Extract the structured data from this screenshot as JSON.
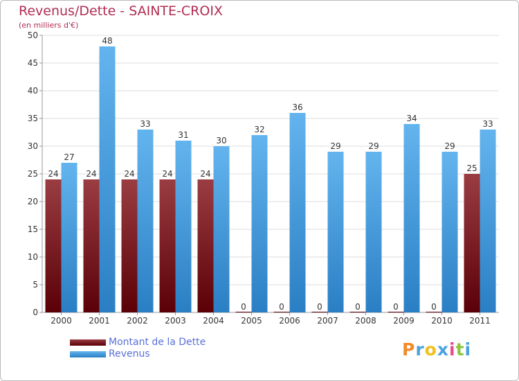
{
  "title": "Revenus/Dette - SAINTE-CROIX",
  "subtitle": "(en milliers d'€)",
  "colors": {
    "debt_dark": "#5a0006",
    "debt_light": "#9a3d43",
    "revenue_dark": "#2a7fc4",
    "revenue_light": "#63b4ee",
    "title": "#b02c52",
    "legend_text": "#5a6fd6",
    "axis_text": "#333333",
    "grid": "#dddddd"
  },
  "legend": {
    "debt_label": "Montant de la Dette",
    "revenue_label": "Revenus"
  },
  "logo": {
    "letters": [
      "P",
      "r",
      "o",
      "x",
      "i",
      "t",
      "i"
    ],
    "colors": [
      "#f08a2a",
      "#4aa3df",
      "#f0c020",
      "#4aa3df",
      "#e84a8a",
      "#8cc63f",
      "#4aa3df"
    ]
  },
  "chart_data": {
    "type": "bar",
    "title": "Revenus/Dette - SAINTE-CROIX",
    "ylabel": "(en milliers d'€)",
    "xlabel": "",
    "ylim": [
      0,
      50
    ],
    "yticks": [
      0,
      5,
      10,
      15,
      20,
      25,
      30,
      35,
      40,
      45,
      50
    ],
    "grid": true,
    "legend_position": "bottom-left",
    "categories": [
      "2000",
      "2001",
      "2002",
      "2003",
      "2004",
      "2005",
      "2006",
      "2007",
      "2008",
      "2009",
      "2010",
      "2011"
    ],
    "series": [
      {
        "name": "Montant de la Dette",
        "values": [
          24,
          24,
          24,
          24,
          24,
          0,
          0,
          0,
          0,
          0,
          0,
          25
        ]
      },
      {
        "name": "Revenus",
        "values": [
          27,
          48,
          33,
          31,
          30,
          32,
          36,
          29,
          29,
          34,
          29,
          33
        ]
      }
    ]
  }
}
